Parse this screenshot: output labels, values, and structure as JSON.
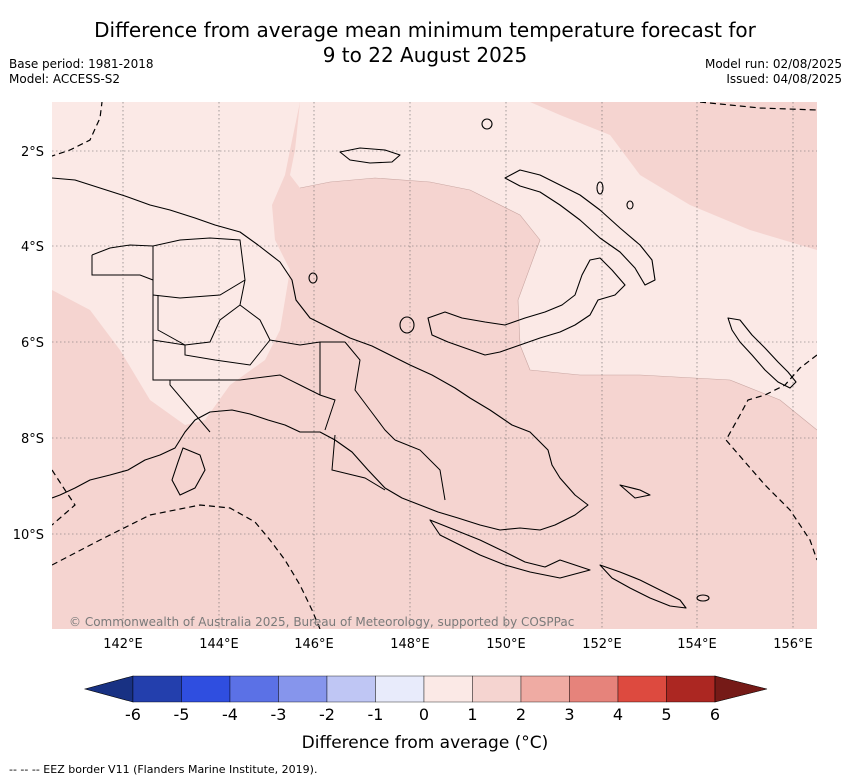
{
  "title": {
    "line1": "Difference from average mean minimum temperature forecast for",
    "line2": "9 to 22 August 2025"
  },
  "meta_left": {
    "base_period": "Base period: 1981-2018",
    "model": "Model: ACCESS-S2"
  },
  "meta_right": {
    "model_run": "Model run: 02/08/2025",
    "issued": "Issued: 04/08/2025"
  },
  "map": {
    "lat_labels": [
      "2°S",
      "4°S",
      "6°S",
      "8°S",
      "10°S"
    ],
    "lon_labels": [
      "142°E",
      "144°E",
      "146°E",
      "148°E",
      "150°E",
      "152°E",
      "154°E",
      "156°E"
    ],
    "copyright": "© Commonwealth of Australia 2025, Bureau of Meteorology, supported by COSPPac",
    "colors": {
      "anomaly_0_1": "#fbe9e6",
      "anomaly_1_2": "#f5d4d0",
      "coast": "#000000",
      "eez": "#000000"
    }
  },
  "colorbar": {
    "ticks": [
      "-6",
      "-5",
      "-4",
      "-3",
      "-2",
      "-1",
      "0",
      "1",
      "2",
      "3",
      "4",
      "5",
      "6"
    ],
    "colors": [
      "#183183",
      "#233fad",
      "#2f4ee0",
      "#5b71e6",
      "#8695ec",
      "#bfc6f4",
      "#e8ebfb",
      "#fbe9e6",
      "#f5d4d0",
      "#efaba3",
      "#e6837b",
      "#dd4a3f",
      "#ac2722",
      "#751a17"
    ],
    "label": "Difference from average (°C)"
  },
  "footer": "--  --  -- EEZ border V11 (Flanders Marine Institute, 2019)."
}
